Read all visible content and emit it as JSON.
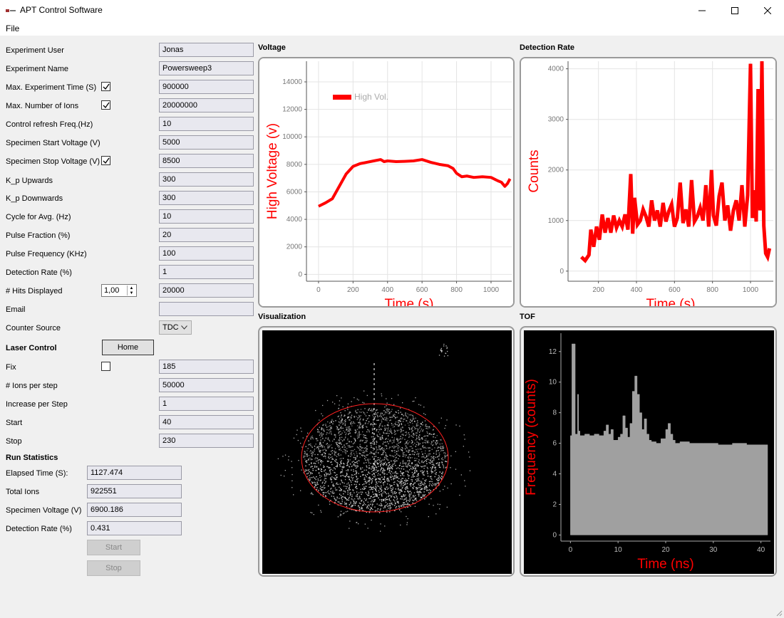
{
  "window": {
    "title": "APT Control Software"
  },
  "menu": {
    "file": "File"
  },
  "settings": {
    "experiment_user": {
      "label": "Experiment User",
      "value": "Jonas"
    },
    "experiment_name": {
      "label": "Experiment Name",
      "value": "Powersweep3"
    },
    "max_experiment_time": {
      "label": "Max. Experiment Time (S)",
      "value": "900000",
      "checked": true
    },
    "max_number_ions": {
      "label": "Max. Number of Ions",
      "value": "20000000",
      "checked": true
    },
    "control_refresh": {
      "label": "Control refresh Freq.(Hz)",
      "value": "10"
    },
    "specimen_start_voltage": {
      "label": "Specimen Start Voltage (V)",
      "value": "5000"
    },
    "specimen_stop_voltage": {
      "label": "Specimen Stop Voltage (V)",
      "value": "8500",
      "checked": true
    },
    "kp_upwards": {
      "label": "K_p Upwards",
      "value": "300"
    },
    "kp_downwards": {
      "label": "K_p Downwards",
      "value": "300"
    },
    "cycle_avg": {
      "label": "Cycle for Avg. (Hz)",
      "value": "10"
    },
    "pulse_fraction": {
      "label": "Pulse Fraction (%)",
      "value": "20"
    },
    "pulse_frequency": {
      "label": "Pulse Frequency (KHz)",
      "value": "100"
    },
    "detection_rate": {
      "label": "Detection Rate (%)",
      "value": "1"
    },
    "hits_displayed": {
      "label": "# Hits Displayed",
      "spin_value": "1,00",
      "value": "20000"
    },
    "email": {
      "label": "Email",
      "value": ""
    },
    "counter_source": {
      "label": "Counter Source",
      "value": "TDC"
    }
  },
  "laser": {
    "heading": "Laser Control",
    "home_button": "Home",
    "fix": {
      "label": "Fix",
      "value": "185",
      "checked": false
    },
    "ions_per_step": {
      "label": "# Ions per step",
      "value": "50000"
    },
    "increase_per_step": {
      "label": "Increase per Step",
      "value": "1"
    },
    "start": {
      "label": "Start",
      "value": "40"
    },
    "stop": {
      "label": "Stop",
      "value": "230"
    }
  },
  "run_stats": {
    "heading": "Run Statistics",
    "elapsed_time": {
      "label": "Elapsed Time (S):",
      "value": "1127.474"
    },
    "total_ions": {
      "label": "Total Ions",
      "value": "922551"
    },
    "specimen_voltage": {
      "label": "Specimen Voltage (V)",
      "value": "6900.186"
    },
    "detection_rate": {
      "label": "Detection Rate (%)",
      "value": "0.431"
    },
    "start_button": "Start",
    "stop_button": "Stop"
  },
  "panels": {
    "voltage": "Voltage",
    "detection_rate": "Detection Rate",
    "visualization": "Visualization",
    "tof": "TOF"
  },
  "colors": {
    "plot_red": "#ff0000",
    "tof_gray": "#a0a0a0",
    "detector_ring": "#ff2020"
  },
  "chart_data": [
    {
      "type": "line",
      "panel": "Voltage",
      "ylabel": "High Voltage (v)",
      "xlabel": "Time (s)",
      "legend": "High Vol.",
      "legend_position": "top-left",
      "xlim": [
        -70,
        1120
      ],
      "ylim": [
        -500,
        15500
      ],
      "x_ticks": [
        0,
        200,
        400,
        600,
        800,
        1000
      ],
      "y_ticks": [
        0,
        2000,
        4000,
        6000,
        8000,
        10000,
        12000,
        14000
      ],
      "grid": true,
      "series": [
        {
          "name": "High Vol.",
          "x": [
            0,
            40,
            80,
            120,
            160,
            200,
            240,
            280,
            320,
            360,
            380,
            400,
            450,
            500,
            550,
            600,
            650,
            700,
            750,
            780,
            800,
            830,
            860,
            900,
            950,
            1000,
            1040,
            1060,
            1080,
            1095,
            1110
          ],
          "y": [
            4950,
            5200,
            5500,
            6400,
            7300,
            7850,
            8050,
            8150,
            8250,
            8350,
            8200,
            8250,
            8200,
            8220,
            8250,
            8350,
            8150,
            8000,
            7900,
            7700,
            7350,
            7100,
            7150,
            7050,
            7100,
            7050,
            6800,
            6700,
            6400,
            6600,
            6950
          ]
        }
      ]
    },
    {
      "type": "line",
      "panel": "Detection Rate",
      "ylabel": "Counts",
      "xlabel": "Time (s)",
      "xlim": [
        40,
        1120
      ],
      "ylim": [
        -200,
        4150
      ],
      "x_ticks": [
        200,
        400,
        600,
        800,
        1000
      ],
      "y_ticks": [
        0,
        1000,
        2000,
        3000,
        4000
      ],
      "grid": true,
      "series": [
        {
          "name": "",
          "x": [
            110,
            130,
            150,
            160,
            175,
            190,
            205,
            220,
            235,
            250,
            265,
            280,
            295,
            310,
            325,
            340,
            355,
            370,
            380,
            390,
            405,
            420,
            435,
            450,
            465,
            480,
            495,
            510,
            525,
            540,
            555,
            570,
            585,
            600,
            615,
            630,
            645,
            660,
            675,
            690,
            705,
            720,
            735,
            750,
            765,
            780,
            795,
            805,
            820,
            835,
            850,
            865,
            880,
            895,
            910,
            925,
            940,
            955,
            970,
            985,
            1000,
            1010,
            1020,
            1030,
            1040,
            1050,
            1060,
            1070,
            1080,
            1090,
            1100
          ],
          "y": [
            280,
            210,
            320,
            820,
            480,
            880,
            620,
            1120,
            760,
            1050,
            760,
            1100,
            860,
            1000,
            880,
            1120,
            820,
            1920,
            740,
            1450,
            920,
            1000,
            1220,
            1080,
            880,
            1400,
            1000,
            1200,
            880,
            1350,
            980,
            1180,
            1320,
            880,
            1050,
            1750,
            950,
            1220,
            880,
            1800,
            980,
            1080,
            1250,
            1000,
            1700,
            880,
            2000,
            1100,
            900,
            1480,
            1750,
            1000,
            1300,
            800,
            1200,
            1400,
            1000,
            1700,
            880,
            1500,
            4100,
            1050,
            1600,
            980,
            3600,
            1200,
            4150,
            900,
            350,
            280,
            450
          ]
        }
      ]
    },
    {
      "type": "bar",
      "panel": "TOF",
      "ylabel": "Frequency (counts)",
      "xlabel": "Time (ns)",
      "xlim": [
        -2,
        42
      ],
      "ylim": [
        -0.4,
        13.2
      ],
      "x_ticks": [
        0,
        10,
        20,
        30,
        40
      ],
      "y_ticks": [
        0,
        2,
        4,
        6,
        8,
        10,
        12
      ],
      "grid": false,
      "bins": {
        "x": [
          0,
          0.3,
          1,
          1.5,
          1.7,
          2,
          3,
          4,
          5,
          6,
          7,
          7.5,
          8,
          8.5,
          9,
          10,
          10.5,
          11,
          11.5,
          12,
          12.5,
          13,
          13.5,
          14,
          14.5,
          15,
          15.5,
          16,
          16.5,
          17,
          18,
          19,
          20,
          20.5,
          21,
          21.5,
          22,
          23,
          25,
          28,
          31,
          34,
          37,
          40,
          41
        ],
        "y": [
          6.5,
          12.5,
          6.6,
          9.2,
          6.8,
          6.5,
          6.6,
          6.5,
          6.6,
          6.5,
          6.8,
          7.2,
          6.6,
          6.9,
          6.2,
          6.4,
          6.6,
          7.8,
          7.0,
          6.4,
          7.3,
          9.4,
          10.4,
          9.2,
          8.0,
          6.9,
          7.6,
          6.6,
          6.2,
          6.1,
          6.0,
          6.3,
          6.9,
          7.3,
          6.6,
          6.2,
          6.0,
          6.1,
          6.0,
          6.0,
          5.9,
          6.0,
          5.9,
          5.9,
          5.9
        ]
      }
    }
  ]
}
